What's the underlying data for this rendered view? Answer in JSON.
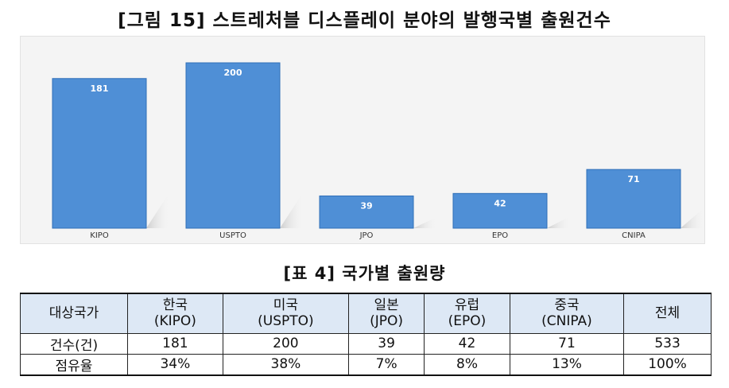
{
  "figure": {
    "title": "[그림 15] 스트레처블 디스플레이 분야의 발행국별 출원건수"
  },
  "chart_data": {
    "type": "bar",
    "categories": [
      "KIPO",
      "USPTO",
      "JPO",
      "EPO",
      "CNIPA"
    ],
    "values": [
      181,
      200,
      39,
      42,
      71
    ],
    "title": "[그림 15] 스트레처블 디스플레이 분야의 발행국별 출원건수",
    "xlabel": "",
    "ylabel": "",
    "ylim": [
      0,
      200
    ],
    "grid": false,
    "bar_color": "#4f8fd6",
    "data_labels": true
  },
  "table": {
    "title": "[표 4] 국가별 출원량",
    "corner": "대상국가",
    "columns": [
      {
        "name": "한국",
        "code": "(KIPO)"
      },
      {
        "name": "미국",
        "code": "(USPTO)"
      },
      {
        "name": "일본",
        "code": "(JPO)"
      },
      {
        "name": "유럽",
        "code": "(EPO)"
      },
      {
        "name": "중국",
        "code": "(CNIPA)"
      },
      {
        "name": "전체",
        "code": ""
      }
    ],
    "rows": [
      {
        "label": "건수(건)",
        "values": [
          "181",
          "200",
          "39",
          "42",
          "71",
          "533"
        ]
      },
      {
        "label": "점유율",
        "values": [
          "34%",
          "38%",
          "7%",
          "8%",
          "13%",
          "100%"
        ]
      }
    ],
    "header_bg": "#dde8f5"
  }
}
